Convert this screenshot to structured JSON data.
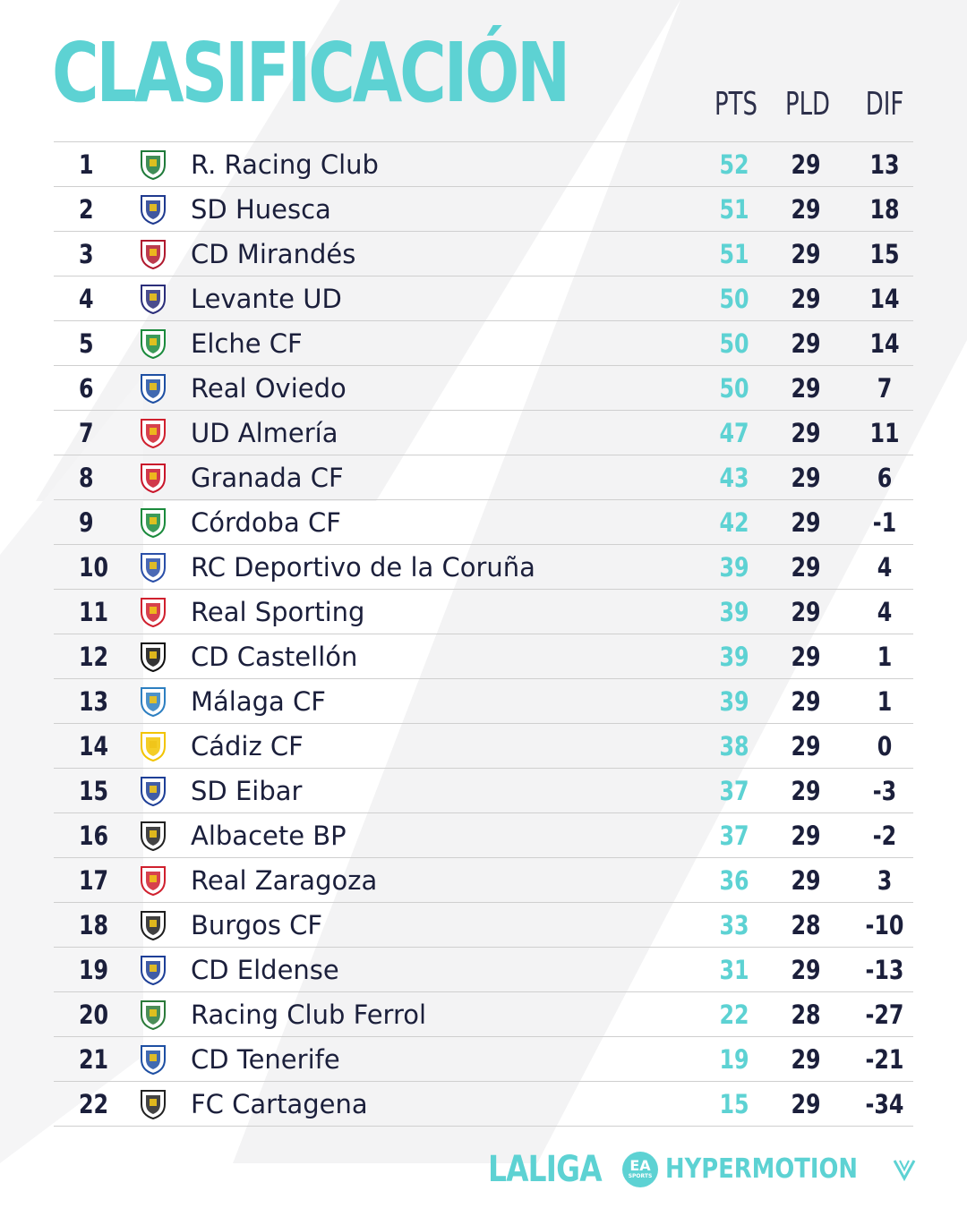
{
  "title": "CLASIFICACIÓN",
  "columns": {
    "pts": "PTS",
    "pld": "PLD",
    "dif": "DIF"
  },
  "colors": {
    "accent": "#5dd2d3",
    "text": "#1b1f3b",
    "divider": "#cfcfcf"
  },
  "rows": [
    {
      "pos": "1",
      "team": "R. Racing Club",
      "pts": "52",
      "pld": "29",
      "dif": "13",
      "crest": "racing-crest-icon",
      "crest_color": "#1f7a3a"
    },
    {
      "pos": "2",
      "team": "SD Huesca",
      "pts": "51",
      "pld": "29",
      "dif": "18",
      "crest": "huesca-crest-icon",
      "crest_color": "#1f3a8f"
    },
    {
      "pos": "3",
      "team": "CD Mirandés",
      "pts": "51",
      "pld": "29",
      "dif": "15",
      "crest": "mirandes-crest-icon",
      "crest_color": "#b0192e"
    },
    {
      "pos": "4",
      "team": "Levante UD",
      "pts": "50",
      "pld": "29",
      "dif": "14",
      "crest": "levante-crest-icon",
      "crest_color": "#2b2e7a"
    },
    {
      "pos": "5",
      "team": "Elche CF",
      "pts": "50",
      "pld": "29",
      "dif": "14",
      "crest": "elche-crest-icon",
      "crest_color": "#1a8a3c"
    },
    {
      "pos": "6",
      "team": "Real Oviedo",
      "pts": "50",
      "pld": "29",
      "dif": "7",
      "crest": "oviedo-crest-icon",
      "crest_color": "#1e4fa3"
    },
    {
      "pos": "7",
      "team": "UD Almería",
      "pts": "47",
      "pld": "29",
      "dif": "11",
      "crest": "almeria-crest-icon",
      "crest_color": "#d0202e"
    },
    {
      "pos": "8",
      "team": "Granada CF",
      "pts": "43",
      "pld": "29",
      "dif": "6",
      "crest": "granada-crest-icon",
      "crest_color": "#c9162b"
    },
    {
      "pos": "9",
      "team": "Córdoba CF",
      "pts": "42",
      "pld": "29",
      "dif": "-1",
      "crest": "cordoba-crest-icon",
      "crest_color": "#1a8a3c"
    },
    {
      "pos": "10",
      "team": "RC Deportivo de la Coruña",
      "pts": "39",
      "pld": "29",
      "dif": "4",
      "crest": "deportivo-crest-icon",
      "crest_color": "#2a4fa8"
    },
    {
      "pos": "11",
      "team": "Real Sporting",
      "pts": "39",
      "pld": "29",
      "dif": "4",
      "crest": "sporting-crest-icon",
      "crest_color": "#d0202e"
    },
    {
      "pos": "12",
      "team": "CD Castellón",
      "pts": "39",
      "pld": "29",
      "dif": "1",
      "crest": "castellon-crest-icon",
      "crest_color": "#111111"
    },
    {
      "pos": "13",
      "team": "Málaga CF",
      "pts": "39",
      "pld": "29",
      "dif": "1",
      "crest": "malaga-crest-icon",
      "crest_color": "#2d7fc1"
    },
    {
      "pos": "14",
      "team": "Cádiz CF",
      "pts": "38",
      "pld": "29",
      "dif": "0",
      "crest": "cadiz-crest-icon",
      "crest_color": "#f2c400"
    },
    {
      "pos": "15",
      "team": "SD Eibar",
      "pts": "37",
      "pld": "29",
      "dif": "-3",
      "crest": "eibar-crest-icon",
      "crest_color": "#1e3f97"
    },
    {
      "pos": "16",
      "team": "Albacete BP",
      "pts": "37",
      "pld": "29",
      "dif": "-2",
      "crest": "albacete-crest-icon",
      "crest_color": "#222222"
    },
    {
      "pos": "17",
      "team": "Real Zaragoza",
      "pts": "36",
      "pld": "29",
      "dif": "3",
      "crest": "zaragoza-crest-icon",
      "crest_color": "#d0202e"
    },
    {
      "pos": "18",
      "team": "Burgos CF",
      "pts": "33",
      "pld": "28",
      "dif": "-10",
      "crest": "burgos-crest-icon",
      "crest_color": "#1e1e1e"
    },
    {
      "pos": "19",
      "team": "CD Eldense",
      "pts": "31",
      "pld": "29",
      "dif": "-13",
      "crest": "eldense-crest-icon",
      "crest_color": "#1e3f97"
    },
    {
      "pos": "20",
      "team": "Racing Club Ferrol",
      "pts": "22",
      "pld": "28",
      "dif": "-27",
      "crest": "ferrol-crest-icon",
      "crest_color": "#2b7a3a"
    },
    {
      "pos": "21",
      "team": "CD Tenerife",
      "pts": "19",
      "pld": "29",
      "dif": "-21",
      "crest": "tenerife-crest-icon",
      "crest_color": "#1e4fa3"
    },
    {
      "pos": "22",
      "team": "FC Cartagena",
      "pts": "15",
      "pld": "29",
      "dif": "-34",
      "crest": "cartagena-crest-icon",
      "crest_color": "#222222"
    }
  ],
  "footer": {
    "laliga": "LALIGA",
    "ea": "EA",
    "ea_sub": "SPORTS",
    "hypermotion": "HYPERMOTION"
  }
}
